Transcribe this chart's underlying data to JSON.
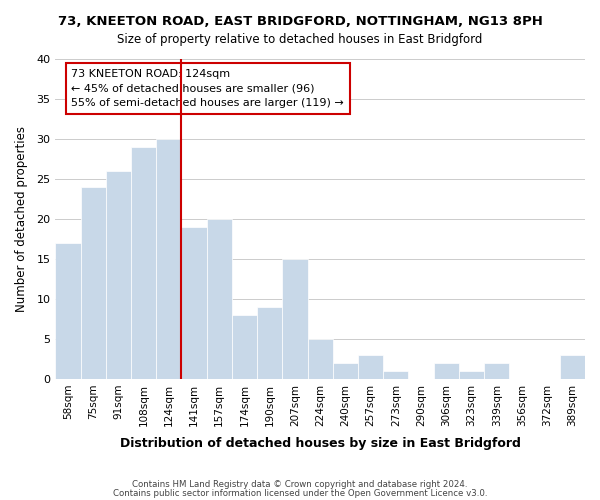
{
  "title_line1": "73, KNEETON ROAD, EAST BRIDGFORD, NOTTINGHAM, NG13 8PH",
  "title_line2": "Size of property relative to detached houses in East Bridgford",
  "xlabel": "Distribution of detached houses by size in East Bridgford",
  "ylabel": "Number of detached properties",
  "bar_labels": [
    "58sqm",
    "75sqm",
    "91sqm",
    "108sqm",
    "124sqm",
    "141sqm",
    "157sqm",
    "174sqm",
    "190sqm",
    "207sqm",
    "224sqm",
    "240sqm",
    "257sqm",
    "273sqm",
    "290sqm",
    "306sqm",
    "323sqm",
    "339sqm",
    "356sqm",
    "372sqm",
    "389sqm"
  ],
  "bar_values": [
    17,
    24,
    26,
    29,
    30,
    19,
    20,
    8,
    9,
    15,
    5,
    2,
    3,
    1,
    0,
    2,
    1,
    2,
    0,
    0,
    3
  ],
  "bar_color": "#c8d8e8",
  "bar_edge_color": "#ffffff",
  "grid_color": "#cccccc",
  "vline_x_index": 4,
  "vline_color": "#cc0000",
  "annotation_box_text": "73 KNEETON ROAD: 124sqm\n← 45% of detached houses are smaller (96)\n55% of semi-detached houses are larger (119) →",
  "annotation_border_color": "#cc0000",
  "ylim": [
    0,
    40
  ],
  "yticks": [
    0,
    5,
    10,
    15,
    20,
    25,
    30,
    35,
    40
  ],
  "footnote_line1": "Contains HM Land Registry data © Crown copyright and database right 2024.",
  "footnote_line2": "Contains public sector information licensed under the Open Government Licence v3.0.",
  "bg_color": "#ffffff"
}
